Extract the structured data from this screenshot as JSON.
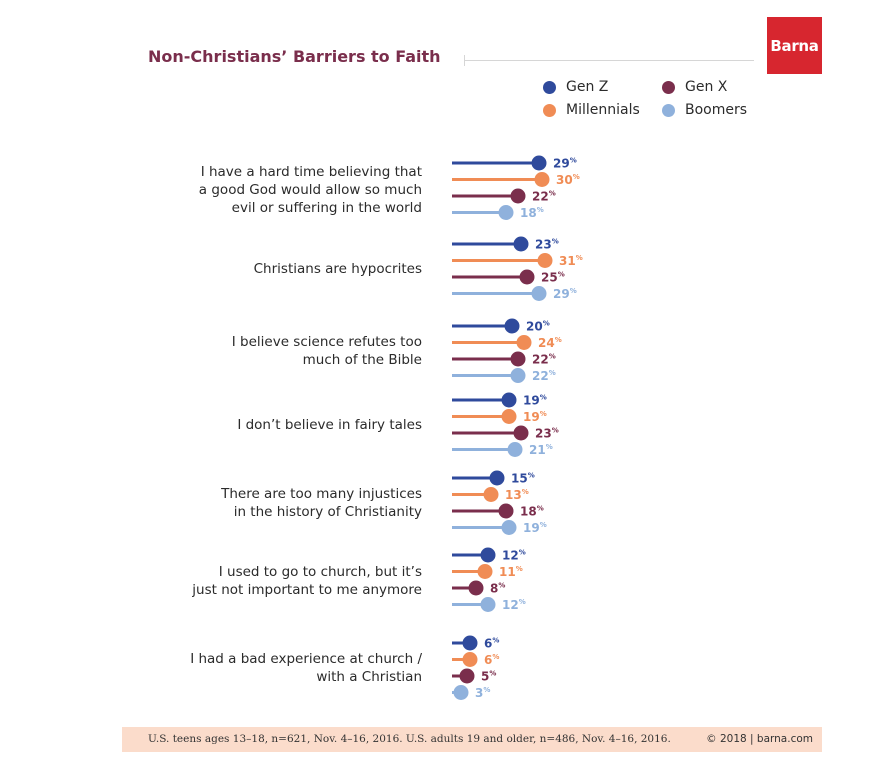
{
  "header": {
    "title": "Non-Christians’ Barriers to Faith",
    "logo_text": "Barna"
  },
  "legend": [
    {
      "label": "Gen Z",
      "color": "#2f4a9c"
    },
    {
      "label": "Gen X",
      "color": "#7a2e4c"
    },
    {
      "label": "Millennials",
      "color": "#f08c55"
    },
    {
      "label": "Boomers",
      "color": "#8fb1dc"
    }
  ],
  "chart_data": {
    "type": "lollipop",
    "title": "Non-Christians’ Barriers to Faith",
    "value_suffix": "%",
    "xlim": [
      0,
      31
    ],
    "series": [
      {
        "name": "Gen Z",
        "color": "#2f4a9c",
        "label_color": "#2f4a9c",
        "values": [
          29,
          23,
          20,
          19,
          15,
          12,
          6
        ]
      },
      {
        "name": "Millennials",
        "color": "#f08c55",
        "label_color": "#f08c55",
        "values": [
          30,
          31,
          24,
          19,
          13,
          11,
          6
        ]
      },
      {
        "name": "Gen X",
        "color": "#7a2e4c",
        "label_color": "#7a2e4c",
        "values": [
          22,
          25,
          22,
          23,
          18,
          8,
          5
        ]
      },
      {
        "name": "Boomers",
        "color": "#8fb1dc",
        "label_color": "#8fb1dc",
        "values": [
          18,
          29,
          22,
          21,
          19,
          12,
          3
        ]
      }
    ],
    "categories": [
      "I have a hard time believing that\na good God would allow so much\nevil or suffering in the world",
      "Christians are hypocrites",
      "I believe science refutes too\nmuch of the Bible",
      "I don’t believe in fairy tales",
      "There are too many injustices\nin the history of Christianity",
      "I used to go to church, but it’s\njust not important to me anymore",
      "I had a bad experience at church /\nwith a Christian"
    ]
  },
  "footer": {
    "note": "U.S. teens ages 13–18, n=621, Nov. 4–16, 2016. U.S. adults 19 and older, n=486, Nov. 4–16, 2016.",
    "copyright": "© 2018 | barna.com"
  }
}
